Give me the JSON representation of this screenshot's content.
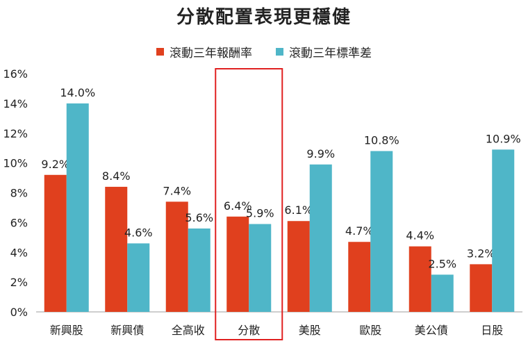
{
  "chart_data": {
    "type": "bar",
    "title": "分散配置表現更穩健",
    "categories": [
      "新興股",
      "新興債",
      "全高收",
      "分散",
      "美股",
      "歐股",
      "美公債",
      "日股"
    ],
    "series": [
      {
        "name": "滾動三年報酬率",
        "color": "#e0401e",
        "values": [
          9.2,
          8.4,
          7.4,
          6.4,
          6.1,
          4.7,
          4.4,
          3.2
        ],
        "labels": [
          "9.2%",
          "8.4%",
          "7.4%",
          "6.4%",
          "6.1%",
          "4.7%",
          "4.4%",
          "3.2%"
        ]
      },
      {
        "name": "滾動三年標準差",
        "color": "#4fb6c8",
        "values": [
          14.0,
          4.6,
          5.6,
          5.9,
          9.9,
          10.8,
          2.5,
          10.9
        ],
        "labels": [
          "14.0%",
          "4.6%",
          "5.6%",
          "5.9%",
          "9.9%",
          "10.8%",
          "2.5%",
          "10.9%"
        ]
      }
    ],
    "ylim": [
      0,
      16
    ],
    "yticks": [
      "0%",
      "2%",
      "4%",
      "6%",
      "8%",
      "10%",
      "12%",
      "14%",
      "16%"
    ],
    "grid": false,
    "legend": "top-center",
    "highlight": {
      "category": "分散",
      "color": "#e02020"
    }
  }
}
